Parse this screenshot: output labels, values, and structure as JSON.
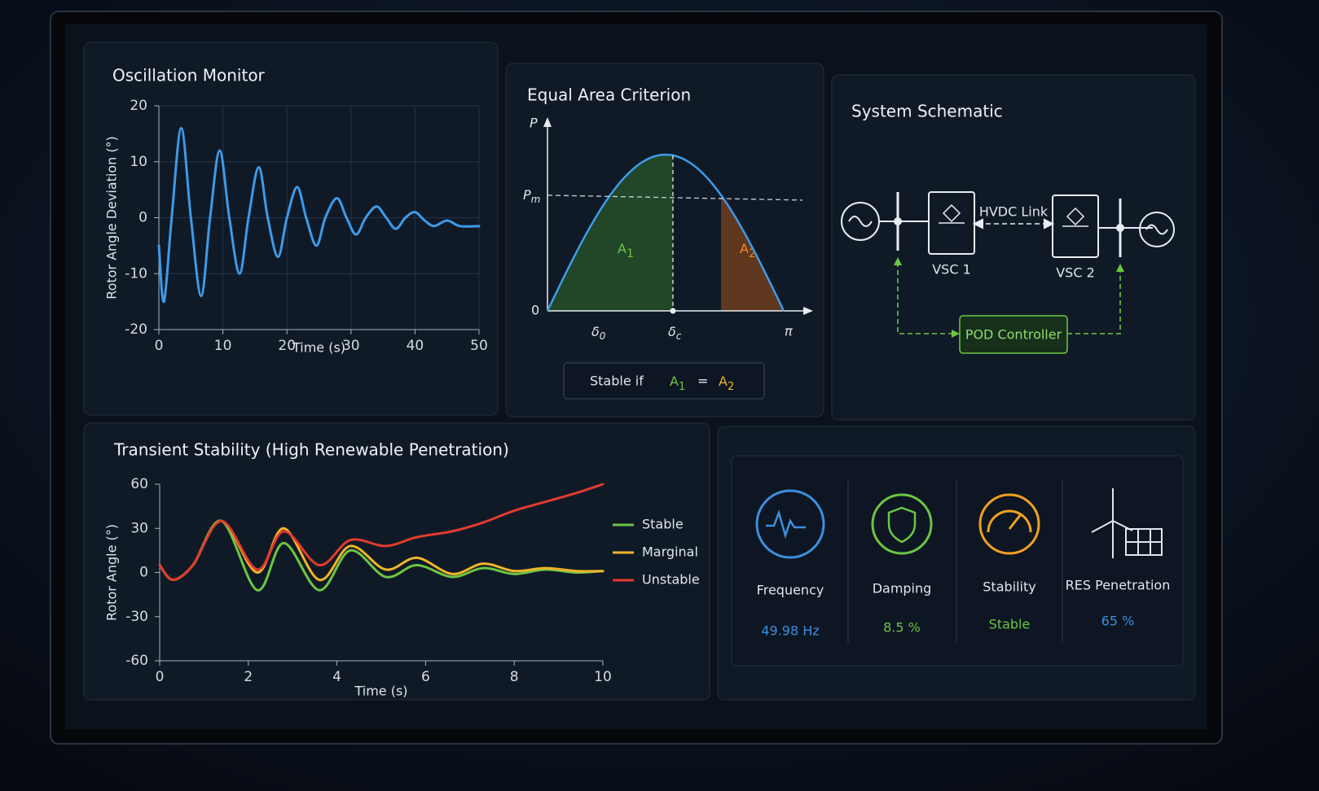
{
  "chart_data": [
    {
      "type": "line",
      "title": "Oscillation Monitor",
      "x_label": "Time (s)",
      "y_label": "Rotor Angle Deviation (°)",
      "x": [
        0,
        0.8,
        2,
        3.5,
        5,
        6.6,
        8,
        9.5,
        11,
        12.6,
        14,
        15.6,
        17,
        18.6,
        20,
        21.6,
        23,
        24.6,
        26,
        27.8,
        29.3,
        30.8,
        32.3,
        34,
        35.5,
        37,
        38.5,
        40,
        41.5,
        43,
        45,
        47,
        50
      ],
      "values": [
        -5,
        -15,
        0,
        16,
        0,
        -14,
        0,
        12,
        0,
        -10,
        0,
        9,
        0,
        -7,
        0,
        5.5,
        0,
        -5,
        0,
        3.5,
        0,
        -3,
        0,
        2,
        0,
        -2,
        0,
        1,
        -0.5,
        -1.5,
        -0.5,
        -1.5,
        -1.5
      ],
      "color": "#3d9be9",
      "xlim": [
        0,
        50
      ],
      "ylim": [
        -20,
        20
      ],
      "xticks": [
        0,
        10,
        20,
        30,
        40,
        50
      ],
      "yticks": [
        -20,
        -10,
        0,
        10,
        20
      ],
      "grid": true
    },
    {
      "type": "line",
      "title": "Transient Stability (High Renewable Penetration)",
      "x_label": "Time (s)",
      "y_label": "Rotor Angle (°)",
      "x": [
        0,
        0.3,
        0.75,
        1.4,
        2.2,
        2.8,
        3.6,
        4.3,
        5.1,
        5.8,
        6.6,
        7.3,
        8,
        8.7,
        9.4,
        10
      ],
      "series": [
        {
          "name": "Stable",
          "color": "#6cc644",
          "values": [
            5,
            -5,
            5,
            35,
            -12,
            20,
            -12,
            15,
            -3,
            5,
            -3,
            3,
            -1,
            2,
            0,
            1
          ]
        },
        {
          "name": "Marginal",
          "color": "#f0b429",
          "values": [
            5,
            -5,
            5,
            35,
            0,
            30,
            -5,
            18,
            2,
            10,
            -1,
            6,
            1,
            3,
            1,
            1
          ]
        },
        {
          "name": "Unstable",
          "color": "#e23b2e",
          "values": [
            5,
            -5,
            5,
            35,
            2,
            28,
            5,
            22,
            18,
            24,
            28,
            34,
            42,
            48,
            54,
            60
          ]
        }
      ],
      "xlim": [
        0,
        10
      ],
      "ylim": [
        -60,
        60
      ],
      "xticks": [
        0,
        2,
        4,
        6,
        8,
        10
      ],
      "yticks": [
        -60,
        -30,
        0,
        30,
        60
      ],
      "grid": false,
      "legend": "right"
    }
  ],
  "equal_area": {
    "title": "Equal Area Criterion",
    "p_axis": "P",
    "pm": {
      "base": "P",
      "sub": "m"
    },
    "zero": "0",
    "delta0": {
      "base": "δ",
      "sub": "0"
    },
    "deltac": {
      "base": "δ",
      "sub": "c"
    },
    "pi": "π",
    "a1": {
      "base": "A",
      "sub": "1"
    },
    "a2": {
      "base": "A",
      "sub": "2"
    },
    "condition": {
      "text": "Stable if",
      "left": {
        "base": "A",
        "sub": "1"
      },
      "eq": "=",
      "right": {
        "base": "A",
        "sub": "2"
      }
    }
  },
  "schematic": {
    "title": "System Schematic",
    "nodes": [
      "VSC 1",
      "VSC 2",
      "POD Controller"
    ],
    "link": "HVDC Link"
  },
  "metrics": [
    {
      "label": "Frequency",
      "value": "49.98 Hz"
    },
    {
      "label": "Damping",
      "value": "8.5 %"
    },
    {
      "label": "Stability",
      "value": "Stable"
    },
    {
      "label": "RES Penetration",
      "value": "65 %"
    }
  ]
}
